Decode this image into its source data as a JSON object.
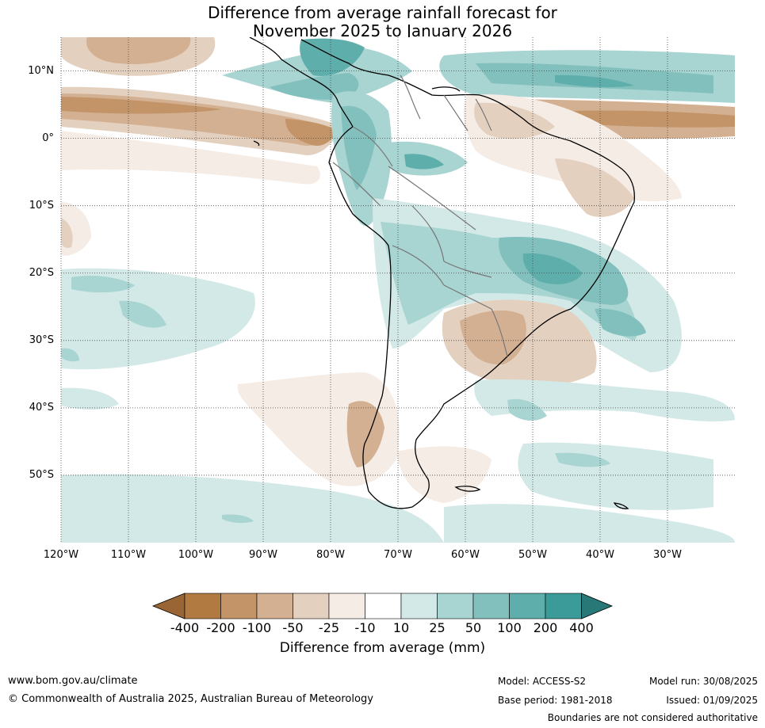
{
  "title_line1": "Difference from average rainfall forecast for",
  "title_line2": "November 2025 to January 2026",
  "lat_labels": [
    "10°N",
    "0°",
    "10°S",
    "20°S",
    "30°S",
    "40°S",
    "50°S"
  ],
  "lat_values": [
    10,
    0,
    -10,
    -20,
    -30,
    -40,
    -50
  ],
  "lon_labels": [
    "120°W",
    "110°W",
    "100°W",
    "90°W",
    "80°W",
    "70°W",
    "60°W",
    "50°W",
    "40°W",
    "30°W"
  ],
  "lon_values": [
    -120,
    -110,
    -100,
    -90,
    -80,
    -70,
    -60,
    -50,
    -40,
    -30
  ],
  "map_extent": {
    "lon_min": -120,
    "lon_max": -20,
    "lat_min": -60,
    "lat_max": 15
  },
  "colorbar": {
    "ticks": [
      "-400",
      "-200",
      "-100",
      "-50",
      "-25",
      "-10",
      "10",
      "25",
      "50",
      "100",
      "200",
      "400"
    ],
    "colors": [
      "#9a6535",
      "#b07a40",
      "#c29468",
      "#d4b092",
      "#e4d0bf",
      "#f5ece6",
      "#ffffff",
      "#d3e9e7",
      "#a8d4d1",
      "#82c0bd",
      "#5eaeab",
      "#3a9b98",
      "#287878"
    ],
    "label": "Difference from average (mm)"
  },
  "footer": {
    "url": "www.bom.gov.au/climate",
    "copyright": "© Commonwealth of Australia 2025, Australian Bureau of Meteorology",
    "model": "Model: ACCESS-S2",
    "base_period": "Base period: 1981-2018",
    "model_run": "Model run: 30/08/2025",
    "issued": "Issued: 01/09/2025",
    "disclaimer": "Boundaries are not considered authoritative"
  }
}
